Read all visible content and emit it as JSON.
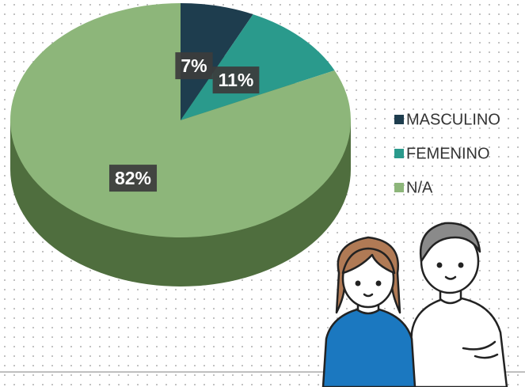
{
  "chart_data": {
    "type": "pie",
    "categories": [
      "MASCULINO",
      "FEMENINO",
      "N/A"
    ],
    "values": [
      7,
      11,
      82
    ],
    "value_labels": [
      "7%",
      "11%",
      "82%"
    ],
    "colors": [
      "#1e3d4e",
      "#2a9a8c",
      "#8db67a"
    ],
    "legend": "right"
  }
}
